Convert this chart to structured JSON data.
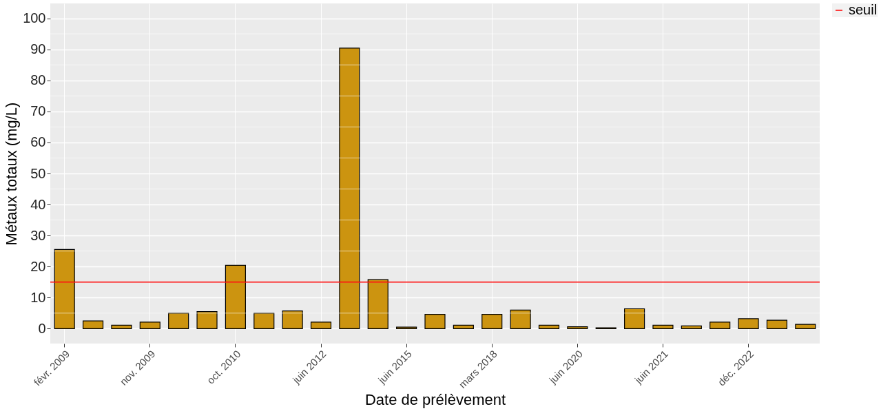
{
  "chart_data": {
    "type": "bar",
    "xlabel": "Date de prélèvement",
    "ylabel": "Métaux totaux (mg/L)",
    "categories": [
      "févr. 2009",
      null,
      null,
      "nov. 2009",
      null,
      null,
      "oct. 2010",
      null,
      null,
      "juin 2012",
      null,
      null,
      "juin 2015",
      null,
      null,
      "mars 2018",
      null,
      null,
      "juin 2020",
      null,
      null,
      "juin 2021",
      null,
      null,
      "déc. 2022",
      null,
      null
    ],
    "values": [
      25.5,
      2.5,
      1.1,
      2.1,
      5.0,
      5.5,
      20.4,
      5.0,
      5.7,
      2.1,
      90.4,
      15.8,
      0.5,
      4.6,
      1.1,
      4.6,
      6.0,
      1.1,
      0.6,
      0.3,
      6.4,
      1.1,
      0.9,
      2.1,
      3.2,
      2.7,
      1.4
    ],
    "color": "#cc9410",
    "ylim": [
      -4.8,
      104.8
    ],
    "yticks": [
      0,
      10,
      20,
      30,
      40,
      50,
      60,
      70,
      80,
      90,
      100
    ],
    "ref_lines": [
      {
        "axis": "y",
        "value": 15,
        "label": "seuil",
        "color": "#ff0000"
      }
    ],
    "grid": true,
    "legend": "right"
  }
}
